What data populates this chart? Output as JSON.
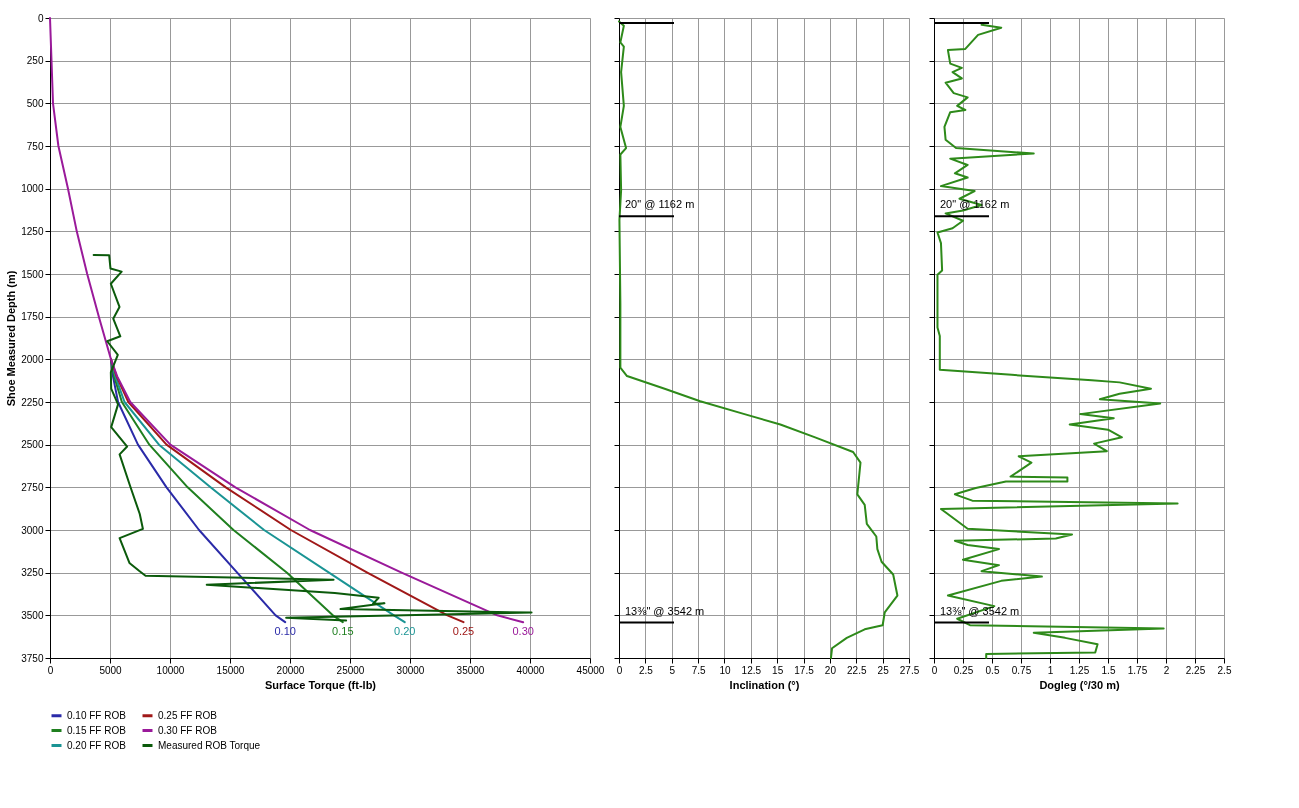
{
  "chart_data": [
    {
      "type": "line",
      "xlabel": "Surface Torque (ft-lb)",
      "ylabel": "Shoe Measured Depth (m)",
      "xlim": [
        0,
        45000
      ],
      "xticks": [
        0,
        5000,
        10000,
        15000,
        20000,
        25000,
        30000,
        35000,
        40000,
        45000
      ],
      "ylim": [
        3750,
        0
      ],
      "yticks": [
        0,
        250,
        500,
        750,
        1000,
        1250,
        1500,
        1750,
        2000,
        2250,
        2500,
        2750,
        3000,
        3250,
        3500,
        3750
      ],
      "grid": true,
      "legend": "bottom",
      "series": [
        {
          "name": "0.10 FF ROB",
          "color": "#2a2aa8",
          "x": [
            5080,
            5250,
            5670,
            7330,
            9710,
            12420,
            15600,
            18800,
            19600
          ],
          "values": [
            2000,
            2100,
            2250,
            2500,
            2750,
            3000,
            3250,
            3500,
            3540
          ]
        },
        {
          "name": "0.15 FF ROB",
          "color": "#1f7f1f",
          "x": [
            5080,
            5350,
            5990,
            8280,
            11470,
            15290,
            19750,
            23570,
            24400
          ],
          "values": [
            2000,
            2100,
            2250,
            2500,
            2750,
            3000,
            3250,
            3500,
            3540
          ]
        },
        {
          "name": "0.20 FF ROB",
          "color": "#1a9494",
          "x": [
            5080,
            5450,
            6210,
            9080,
            13380,
            17840,
            23250,
            28660,
            29560
          ],
          "values": [
            2000,
            2100,
            2250,
            2500,
            2750,
            3000,
            3250,
            3500,
            3540
          ]
        },
        {
          "name": "0.25 FF ROB",
          "color": "#a01818",
          "x": [
            5080,
            5550,
            6530,
            9710,
            14650,
            20070,
            26440,
            33120,
            34460
          ],
          "values": [
            2000,
            2100,
            2250,
            2500,
            2750,
            3000,
            3250,
            3500,
            3540
          ]
        },
        {
          "name": "0.30 FF ROB",
          "color": "#9a1a9a",
          "x": [
            0,
            250,
            700,
            1500,
            2230,
            3100,
            4070,
            5080,
            5600,
            6690,
            10030,
            15450,
            21660,
            29300,
            37270,
            39430
          ],
          "values": [
            0,
            500,
            750,
            1000,
            1250,
            1500,
            1750,
            2000,
            2100,
            2250,
            2500,
            2750,
            3000,
            3250,
            3500,
            3540
          ]
        },
        {
          "name": "Measured ROB Torque",
          "color": "#0b5a0b",
          "x": [
            3640,
            4930,
            5040,
            5970,
            5070,
            5790,
            5270,
            5860,
            4770,
            5650,
            5070,
            5100,
            5670,
            5100,
            6430,
            5800,
            6690,
            7480,
            7740,
            5800,
            6620,
            7420,
            7960,
            23630,
            13060,
            23730,
            27390,
            26910,
            27870,
            24210,
            40130,
            19680,
            24680
          ],
          "values": [
            1388,
            1390,
            1468,
            1486,
            1557,
            1693,
            1762,
            1865,
            1894,
            1974,
            2077,
            2172,
            2264,
            2397,
            2511,
            2557,
            2745,
            2906,
            2993,
            3048,
            3193,
            3239,
            3268,
            3291,
            3321,
            3369,
            3397,
            3433,
            3429,
            3463,
            3484,
            3514,
            3530
          ]
        }
      ],
      "annotations": [
        {
          "text": "0.10",
          "x": 19600,
          "y": 3540
        },
        {
          "text": "0.15",
          "x": 24400,
          "y": 3540
        },
        {
          "text": "0.20",
          "x": 29560,
          "y": 3540
        },
        {
          "text": "0.25",
          "x": 34460,
          "y": 3540
        },
        {
          "text": "0.30",
          "x": 39430,
          "y": 3540
        }
      ]
    },
    {
      "type": "line",
      "xlabel": "Inclination (°)",
      "xlim": [
        0,
        27.5
      ],
      "xticks": [
        0,
        2.5,
        5,
        7.5,
        10,
        12.5,
        15,
        17.5,
        20,
        22.5,
        25,
        27.5
      ],
      "ylim": [
        3750,
        0
      ],
      "yticks": [
        0,
        250,
        500,
        750,
        1000,
        1250,
        1500,
        1750,
        2000,
        2250,
        2500,
        2750,
        3000,
        3250,
        3500,
        3750
      ],
      "grid": true,
      "tick_labels": "x",
      "series": [
        {
          "color": "#2e8a1a",
          "x": [
            0.0,
            0.46,
            0.13,
            0.46,
            0.2,
            0.46,
            0.13,
            0.67,
            0.13,
            0.2,
            0.04,
            0.13,
            0.13,
            0.76,
            4.33,
            7.7,
            11.9,
            15.3,
            18.6,
            22.2,
            22.9,
            22.6,
            23.3,
            23.5,
            24.4,
            24.5,
            24.9,
            26.0,
            26.4,
            25.2,
            25.0,
            23.3,
            21.6,
            20.2,
            20.1
          ],
          "values": [
            20,
            45,
            143,
            168,
            317,
            515,
            638,
            762,
            800,
            1009,
            1183,
            1677,
            2049,
            2098,
            2172,
            2246,
            2321,
            2382,
            2457,
            2543,
            2605,
            2791,
            2853,
            2964,
            3038,
            3112,
            3186,
            3261,
            3384,
            3483,
            3558,
            3582,
            3632,
            3693,
            3750
          ]
        }
      ],
      "ref_lines": [
        {
          "axis": "y",
          "value": 30,
          "label": null
        },
        {
          "axis": "y",
          "value": 1162,
          "label": "20\" @ 1162 m"
        },
        {
          "axis": "y",
          "value": 3542,
          "label": "13⅜\" @ 3542 m"
        }
      ]
    },
    {
      "type": "line",
      "xlabel": "Dogleg (°/30 m)",
      "xlim": [
        0,
        2.5
      ],
      "xticks": [
        0,
        0.25,
        0.5,
        0.75,
        1,
        1.25,
        1.5,
        1.75,
        2,
        2.25,
        2.5
      ],
      "ylim": [
        3750,
        0
      ],
      "yticks": [
        0,
        250,
        500,
        750,
        1000,
        1250,
        1500,
        1750,
        2000,
        2250,
        2500,
        2750,
        3000,
        3250,
        3500,
        3750
      ],
      "grid": true,
      "tick_labels": "x",
      "series": [
        {
          "color": "#2e8a1a",
          "x": [
            0.41,
            0.58,
            0.38,
            0.27,
            0.12,
            0.14,
            0.24,
            0.16,
            0.24,
            0.1,
            0.17,
            0.29,
            0.2,
            0.27,
            0.14,
            0.09,
            0.1,
            0.19,
            0.86,
            0.14,
            0.29,
            0.18,
            0.29,
            0.06,
            0.35,
            0.22,
            0.41,
            0.25,
            0.1,
            0.25,
            0.16,
            0.03,
            0.06,
            0.07,
            0.03,
            0.03,
            0.05,
            0.05,
            0.67,
            1.36,
            1.6,
            1.87,
            1.6,
            1.43,
            1.95,
            1.26,
            1.55,
            1.17,
            1.5,
            1.62,
            1.38,
            1.49,
            0.73,
            0.84,
            0.66,
            1.15,
            1.15,
            0.62,
            0.36,
            0.18,
            0.33,
            2.1,
            0.06,
            0.11,
            0.29,
            1.19,
            1.05,
            0.18,
            0.29,
            0.56,
            0.25,
            0.56,
            0.41,
            0.93,
            0.58,
            0.12,
            0.52,
            0.2,
            0.31,
            1.98,
            0.86,
            1.13,
            1.41,
            1.39,
            0.45,
            0.45
          ],
          "values": [
            40,
            57,
            99,
            181,
            188,
            267,
            292,
            317,
            354,
            379,
            440,
            465,
            515,
            539,
            552,
            638,
            713,
            762,
            794,
            824,
            861,
            910,
            935,
            985,
            1014,
            1059,
            1096,
            1128,
            1145,
            1188,
            1232,
            1257,
            1319,
            1479,
            1504,
            1813,
            1863,
            2061,
            2091,
            2123,
            2135,
            2172,
            2202,
            2234,
            2259,
            2321,
            2345,
            2382,
            2412,
            2457,
            2494,
            2538,
            2568,
            2605,
            2687,
            2692,
            2716,
            2716,
            2754,
            2791,
            2828,
            2845,
            2877,
            2902,
            2993,
            3026,
            3050,
            3063,
            3088,
            3112,
            3174,
            3206,
            3241,
            3273,
            3298,
            3384,
            3446,
            3520,
            3558,
            3577,
            3602,
            3632,
            3669,
            3718,
            3726,
            3750
          ]
        }
      ],
      "ref_lines": [
        {
          "axis": "y",
          "value": 30,
          "label": null
        },
        {
          "axis": "y",
          "value": 1162,
          "label": "20\" @ 1162 m"
        },
        {
          "axis": "y",
          "value": 3542,
          "label": "13⅜\" @ 3542 m"
        }
      ]
    }
  ]
}
